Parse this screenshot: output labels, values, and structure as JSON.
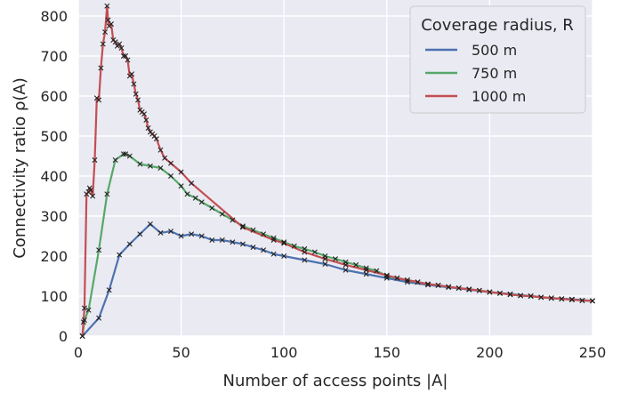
{
  "chart_data": {
    "type": "line",
    "xlabel": "Number of access points |A|",
    "ylabel": "Connectivity ratio ρ(A)",
    "xlim": [
      0,
      250
    ],
    "ylim": [
      0,
      840
    ],
    "xticks": [
      0,
      50,
      100,
      150,
      200,
      250
    ],
    "yticks": [
      0,
      100,
      200,
      300,
      400,
      500,
      600,
      700,
      800
    ],
    "grid": true,
    "legend": {
      "title": "Coverage radius, R",
      "placement": "top-right"
    },
    "marker": "x",
    "series": [
      {
        "name": "500 m",
        "color": "#4c72b0",
        "points": [
          [
            2,
            0
          ],
          [
            10,
            45
          ],
          [
            15,
            115
          ],
          [
            20,
            203
          ],
          [
            25,
            230
          ],
          [
            30,
            255
          ],
          [
            35,
            280
          ],
          [
            40,
            258
          ],
          [
            45,
            262
          ],
          [
            50,
            250
          ],
          [
            55,
            255
          ],
          [
            60,
            250
          ],
          [
            65,
            240
          ],
          [
            70,
            240
          ],
          [
            75,
            235
          ],
          [
            80,
            230
          ],
          [
            85,
            222
          ],
          [
            90,
            215
          ],
          [
            95,
            205
          ],
          [
            100,
            200
          ],
          [
            110,
            190
          ],
          [
            120,
            180
          ],
          [
            130,
            165
          ],
          [
            140,
            155
          ],
          [
            150,
            145
          ],
          [
            160,
            135
          ],
          [
            170,
            128
          ],
          [
            180,
            122
          ],
          [
            190,
            116
          ],
          [
            200,
            110
          ],
          [
            210,
            105
          ],
          [
            220,
            100
          ],
          [
            230,
            95
          ],
          [
            240,
            92
          ],
          [
            250,
            88
          ]
        ]
      },
      {
        "name": "750 m",
        "color": "#55a868",
        "points": [
          [
            2,
            0
          ],
          [
            3,
            40
          ],
          [
            5,
            65
          ],
          [
            10,
            215
          ],
          [
            14,
            355
          ],
          [
            18,
            440
          ],
          [
            22,
            455
          ],
          [
            23,
            455
          ],
          [
            25,
            450
          ],
          [
            30,
            430
          ],
          [
            35,
            425
          ],
          [
            40,
            420
          ],
          [
            45,
            400
          ],
          [
            50,
            375
          ],
          [
            53,
            355
          ],
          [
            57,
            345
          ],
          [
            60,
            335
          ],
          [
            65,
            320
          ],
          [
            70,
            305
          ],
          [
            75,
            290
          ],
          [
            80,
            275
          ],
          [
            85,
            265
          ],
          [
            90,
            255
          ],
          [
            95,
            245
          ],
          [
            100,
            235
          ],
          [
            105,
            225
          ],
          [
            110,
            218
          ],
          [
            115,
            210
          ],
          [
            120,
            200
          ],
          [
            125,
            193
          ],
          [
            130,
            185
          ],
          [
            135,
            178
          ],
          [
            140,
            170
          ],
          [
            145,
            163
          ],
          [
            150,
            150
          ],
          [
            155,
            145
          ],
          [
            160,
            140
          ],
          [
            165,
            135
          ],
          [
            170,
            130
          ],
          [
            175,
            127
          ],
          [
            180,
            123
          ],
          [
            185,
            120
          ],
          [
            190,
            117
          ],
          [
            195,
            114
          ],
          [
            200,
            110
          ],
          [
            205,
            107
          ],
          [
            210,
            104
          ],
          [
            215,
            101
          ],
          [
            220,
            100
          ],
          [
            225,
            97
          ],
          [
            230,
            95
          ],
          [
            235,
            93
          ],
          [
            240,
            91
          ],
          [
            245,
            89
          ],
          [
            250,
            88
          ]
        ]
      },
      {
        "name": "1000 m",
        "color": "#c44e52",
        "points": [
          [
            2,
            0
          ],
          [
            2.5,
            35
          ],
          [
            3,
            70
          ],
          [
            4,
            355
          ],
          [
            5,
            360
          ],
          [
            5.5,
            370
          ],
          [
            6,
            365
          ],
          [
            7,
            350
          ],
          [
            8,
            440
          ],
          [
            9,
            595
          ],
          [
            10,
            590
          ],
          [
            11,
            670
          ],
          [
            12,
            730
          ],
          [
            13,
            760
          ],
          [
            14,
            825
          ],
          [
            14.5,
            790
          ],
          [
            15,
            775
          ],
          [
            16,
            780
          ],
          [
            17,
            740
          ],
          [
            18,
            735
          ],
          [
            19,
            725
          ],
          [
            20,
            730
          ],
          [
            21,
            720
          ],
          [
            22,
            700
          ],
          [
            23,
            700
          ],
          [
            24,
            690
          ],
          [
            25,
            650
          ],
          [
            26,
            655
          ],
          [
            27,
            630
          ],
          [
            28,
            605
          ],
          [
            29,
            590
          ],
          [
            30,
            565
          ],
          [
            31,
            560
          ],
          [
            32,
            555
          ],
          [
            33,
            540
          ],
          [
            34,
            520
          ],
          [
            35,
            510
          ],
          [
            36,
            505
          ],
          [
            37,
            500
          ],
          [
            38,
            493
          ],
          [
            40,
            465
          ],
          [
            42,
            445
          ],
          [
            45,
            432
          ],
          [
            50,
            410
          ],
          [
            55,
            382
          ],
          [
            80,
            272
          ],
          [
            95,
            240
          ],
          [
            100,
            232
          ],
          [
            110,
            210
          ],
          [
            120,
            193
          ],
          [
            130,
            178
          ],
          [
            140,
            165
          ],
          [
            150,
            152
          ],
          [
            155,
            145
          ],
          [
            160,
            140
          ],
          [
            165,
            135
          ],
          [
            170,
            130
          ],
          [
            175,
            127
          ],
          [
            180,
            123
          ],
          [
            185,
            120
          ],
          [
            190,
            117
          ],
          [
            195,
            114
          ],
          [
            200,
            110
          ],
          [
            205,
            107
          ],
          [
            210,
            104
          ],
          [
            215,
            101
          ],
          [
            220,
            100
          ],
          [
            225,
            97
          ],
          [
            230,
            95
          ],
          [
            235,
            93
          ],
          [
            240,
            91
          ],
          [
            245,
            89
          ],
          [
            250,
            88
          ]
        ]
      }
    ]
  }
}
